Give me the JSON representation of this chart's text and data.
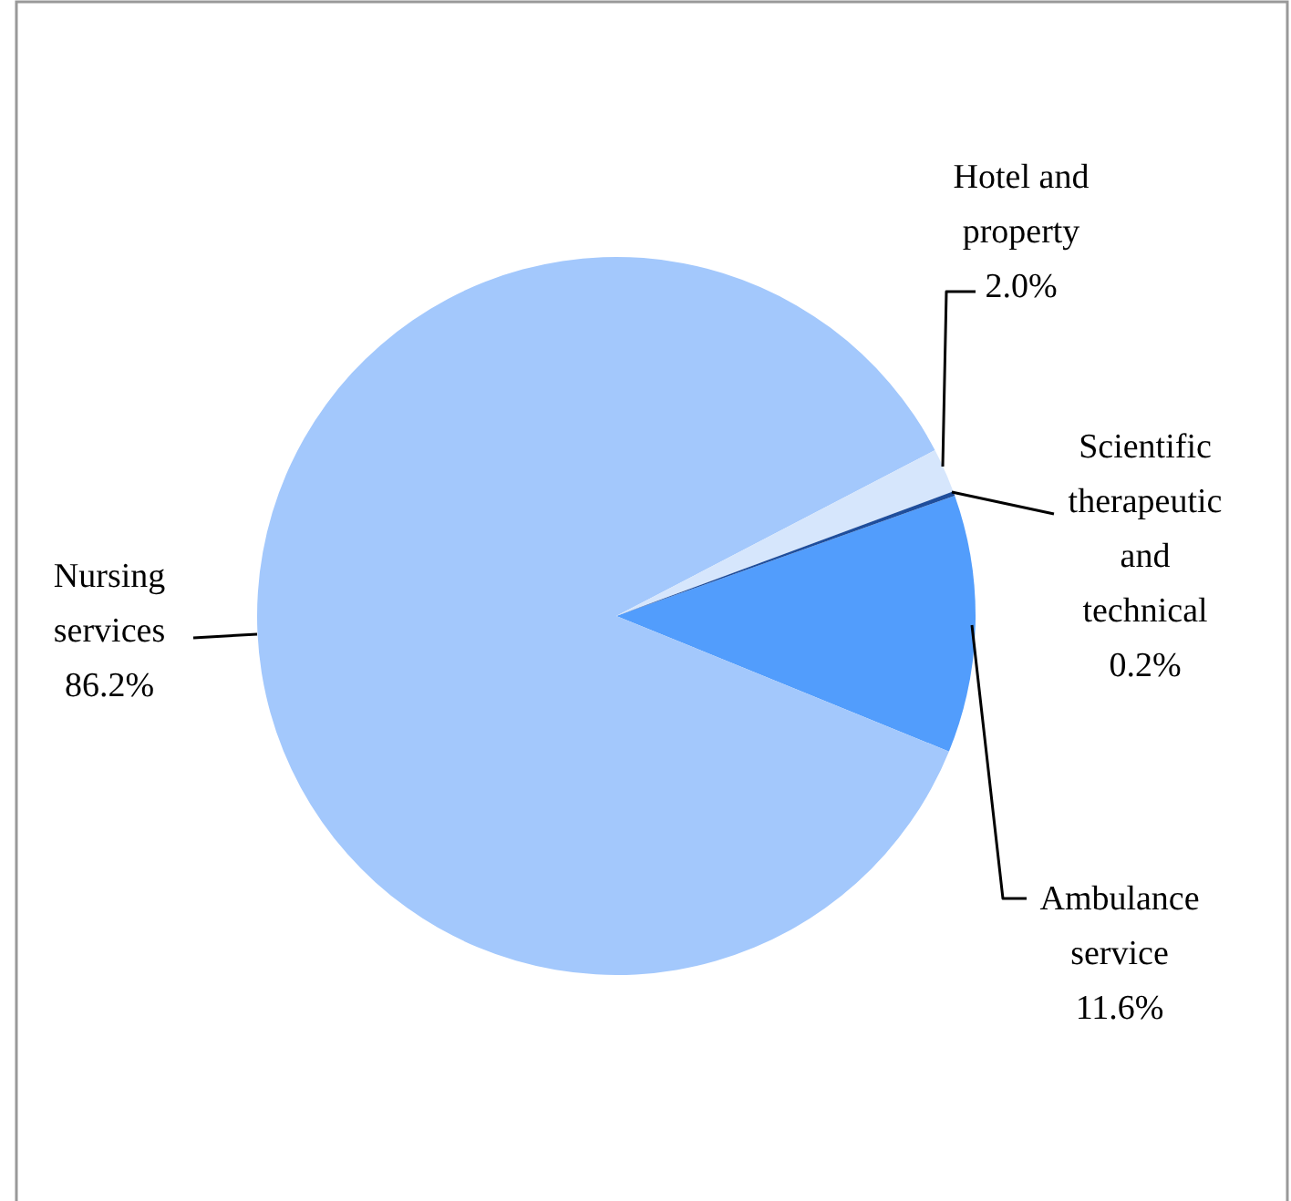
{
  "chart_data": {
    "type": "pie",
    "categories": [
      "Ambulance service",
      "Nursing services",
      "Hotel and property",
      "Scientific therapeutic and technical"
    ],
    "values": [
      11.6,
      86.2,
      2.0,
      0.2
    ],
    "colors": [
      "#529dfc",
      "#a3c8fc",
      "#d6e6fc",
      "#1f4e9c"
    ],
    "value_labels": [
      "11.6%",
      "86.2%",
      "2.0%",
      "0.2%"
    ]
  }
}
